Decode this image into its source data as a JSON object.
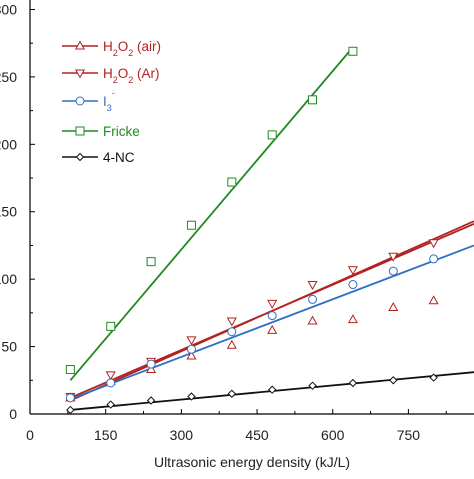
{
  "chart_data": {
    "type": "scatter",
    "title": "",
    "xlabel": "Ultrasonic energy density  (kJ/L)",
    "ylabel": "",
    "xlim": [
      0,
      880
    ],
    "ylim": [
      0,
      310
    ],
    "xticks": [
      0,
      150,
      300,
      450,
      600,
      750
    ],
    "xtick_labels": [
      "0",
      "150",
      "300",
      "450",
      "600",
      "750"
    ],
    "yticks": [
      0,
      50,
      100,
      150,
      200,
      250,
      300
    ],
    "ytick_labels": [
      "0",
      "50",
      "100",
      "150",
      "200",
      "250",
      "300"
    ],
    "grid": false,
    "legend_position": "top-left",
    "series": [
      {
        "name": "H₂O₂ (air)",
        "legend": {
          "main": "H",
          "sub1": "2",
          "mid": "O",
          "sub2": "2",
          "tail": " (air)"
        },
        "color": "#b22222",
        "marker": "triangle-up",
        "x": [
          80,
          160,
          240,
          320,
          400,
          480,
          560,
          640,
          720,
          800
        ],
        "y": [
          12,
          24,
          33,
          43,
          51,
          62,
          69,
          70,
          79,
          84
        ],
        "fit": [
          [
            80,
            10
          ],
          [
            880,
            143
          ]
        ]
      },
      {
        "name": "H₂O₂ (Ar)",
        "legend": {
          "main": "H",
          "sub1": "2",
          "mid": "O",
          "sub2": "2",
          "tail": " (Ar)"
        },
        "color": "#b22222",
        "marker": "triangle-down",
        "x": [
          80,
          160,
          240,
          320,
          400,
          480,
          560,
          640,
          720,
          800
        ],
        "y": [
          13,
          29,
          39,
          55,
          69,
          82,
          96,
          107,
          117,
          127
        ],
        "fit": [
          [
            80,
            12
          ],
          [
            880,
            141
          ]
        ]
      },
      {
        "name": "I₃⁻",
        "legend": {
          "main": "I",
          "sub1": "3",
          "sup": "-"
        },
        "color": "#2f6fc4",
        "marker": "circle",
        "x": [
          80,
          160,
          240,
          320,
          400,
          480,
          560,
          640,
          720,
          800
        ],
        "y": [
          12,
          23,
          37,
          48,
          61,
          73,
          85,
          96,
          106,
          115
        ],
        "fit": [
          [
            80,
            11
          ],
          [
            880,
            125
          ]
        ]
      },
      {
        "name": "Fricke",
        "legend": {
          "main": "Fricke"
        },
        "color": "#1f8a1f",
        "marker": "square",
        "x": [
          80,
          160,
          240,
          320,
          400,
          480,
          560,
          640
        ],
        "y": [
          33,
          65,
          113,
          140,
          172,
          207,
          233,
          269
        ],
        "fit": [
          [
            80,
            25
          ],
          [
            640,
            272
          ]
        ]
      },
      {
        "name": "4-NC",
        "legend": {
          "main": "4-NC"
        },
        "color": "#111111",
        "marker": "diamond",
        "x": [
          80,
          160,
          240,
          320,
          400,
          480,
          560,
          640,
          720,
          800
        ],
        "y": [
          3,
          7,
          10,
          13,
          15,
          18,
          21,
          23,
          25,
          27
        ],
        "fit": [
          [
            80,
            3
          ],
          [
            880,
            31
          ]
        ]
      }
    ]
  }
}
